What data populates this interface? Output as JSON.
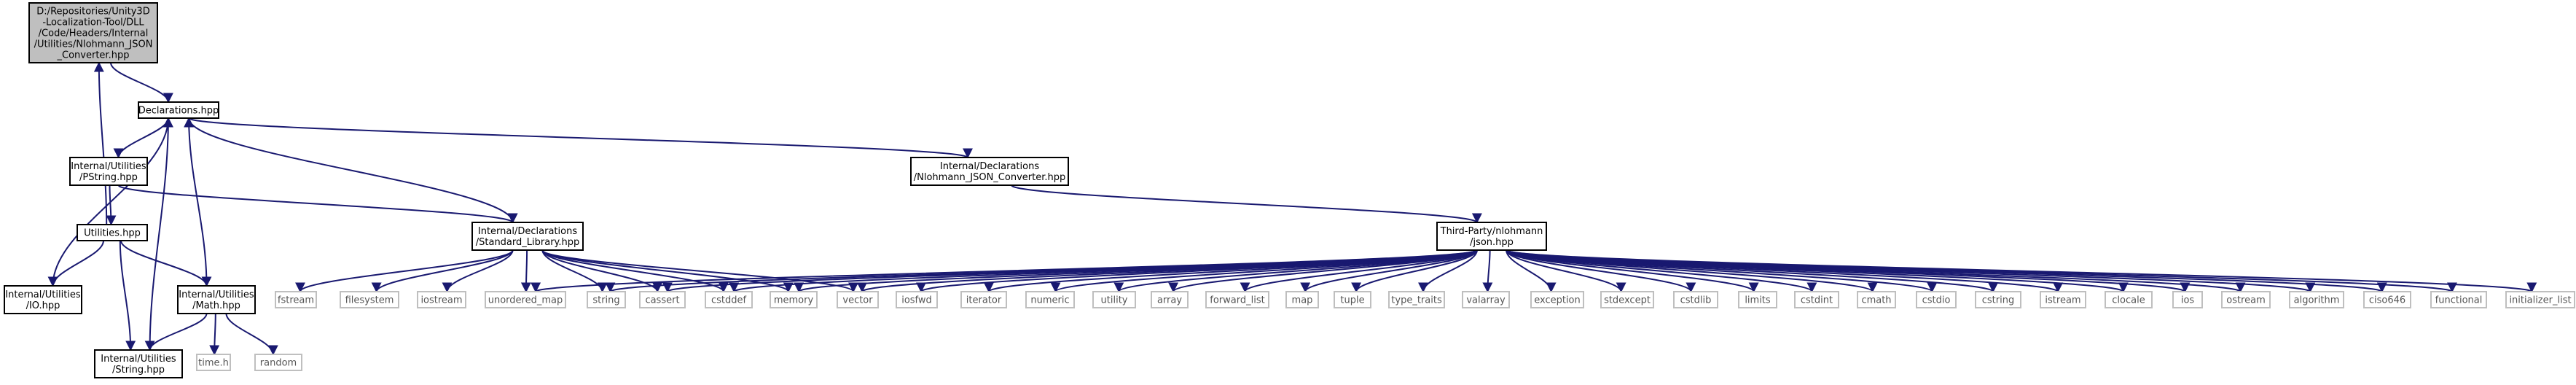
{
  "colors": {
    "edge": "#191970",
    "border": "#000000",
    "root_fill": "#bfbfbf",
    "node_fill": "#ffffff",
    "external_border": "#bfbfbf",
    "external_text": "#555555"
  },
  "nodes": [
    {
      "id": "root",
      "kind": "root",
      "lines": [
        "D:/Repositories/Unity3D",
        "-Localization-Tool/DLL",
        "/Code/Headers/Internal",
        "/Utilities/Nlohmann_JSON",
        "_Converter.hpp"
      ]
    },
    {
      "id": "decl",
      "kind": "file",
      "lines": [
        "Declarations.hpp"
      ]
    },
    {
      "id": "pstring",
      "kind": "file",
      "lines": [
        "Internal/Utilities",
        "/PString.hpp"
      ]
    },
    {
      "id": "nlohconv",
      "kind": "file",
      "lines": [
        "Internal/Declarations",
        "/Nlohmann_JSON_Converter.hpp"
      ]
    },
    {
      "id": "utilities",
      "kind": "file",
      "lines": [
        "Utilities.hpp"
      ]
    },
    {
      "id": "stdlib",
      "kind": "file",
      "lines": [
        "Internal/Declarations",
        "/Standard_Library.hpp"
      ]
    },
    {
      "id": "json",
      "kind": "file",
      "lines": [
        "Third-Party/nlohmann",
        "/json.hpp"
      ]
    },
    {
      "id": "io",
      "kind": "file",
      "lines": [
        "Internal/Utilities",
        "/IO.hpp"
      ]
    },
    {
      "id": "math",
      "kind": "file",
      "lines": [
        "Internal/Utilities",
        "/Math.hpp"
      ]
    },
    {
      "id": "string_hpp",
      "kind": "file",
      "lines": [
        "Internal/Utilities",
        "/String.hpp"
      ]
    },
    {
      "id": "time_h",
      "kind": "ext",
      "lines": [
        "time.h"
      ]
    },
    {
      "id": "random",
      "kind": "ext",
      "lines": [
        "random"
      ]
    },
    {
      "id": "fstream",
      "kind": "ext",
      "lines": [
        "fstream"
      ]
    },
    {
      "id": "filesystem",
      "kind": "ext",
      "lines": [
        "filesystem"
      ]
    },
    {
      "id": "iostream",
      "kind": "ext",
      "lines": [
        "iostream"
      ]
    },
    {
      "id": "unordered_map",
      "kind": "ext",
      "lines": [
        "unordered_map"
      ]
    },
    {
      "id": "string",
      "kind": "ext",
      "lines": [
        "string"
      ]
    },
    {
      "id": "cassert",
      "kind": "ext",
      "lines": [
        "cassert"
      ]
    },
    {
      "id": "cstddef",
      "kind": "ext",
      "lines": [
        "cstddef"
      ]
    },
    {
      "id": "memory",
      "kind": "ext",
      "lines": [
        "memory"
      ]
    },
    {
      "id": "vector",
      "kind": "ext",
      "lines": [
        "vector"
      ]
    },
    {
      "id": "iosfwd",
      "kind": "ext",
      "lines": [
        "iosfwd"
      ]
    },
    {
      "id": "iterator",
      "kind": "ext",
      "lines": [
        "iterator"
      ]
    },
    {
      "id": "numeric",
      "kind": "ext",
      "lines": [
        "numeric"
      ]
    },
    {
      "id": "utility",
      "kind": "ext",
      "lines": [
        "utility"
      ]
    },
    {
      "id": "array",
      "kind": "ext",
      "lines": [
        "array"
      ]
    },
    {
      "id": "forward_list",
      "kind": "ext",
      "lines": [
        "forward_list"
      ]
    },
    {
      "id": "map",
      "kind": "ext",
      "lines": [
        "map"
      ]
    },
    {
      "id": "tuple",
      "kind": "ext",
      "lines": [
        "tuple"
      ]
    },
    {
      "id": "type_traits",
      "kind": "ext",
      "lines": [
        "type_traits"
      ]
    },
    {
      "id": "valarray",
      "kind": "ext",
      "lines": [
        "valarray"
      ]
    },
    {
      "id": "exception",
      "kind": "ext",
      "lines": [
        "exception"
      ]
    },
    {
      "id": "stdexcept",
      "kind": "ext",
      "lines": [
        "stdexcept"
      ]
    },
    {
      "id": "cstdlib",
      "kind": "ext",
      "lines": [
        "cstdlib"
      ]
    },
    {
      "id": "limits",
      "kind": "ext",
      "lines": [
        "limits"
      ]
    },
    {
      "id": "cstdint",
      "kind": "ext",
      "lines": [
        "cstdint"
      ]
    },
    {
      "id": "cmath",
      "kind": "ext",
      "lines": [
        "cmath"
      ]
    },
    {
      "id": "cstdio",
      "kind": "ext",
      "lines": [
        "cstdio"
      ]
    },
    {
      "id": "cstring",
      "kind": "ext",
      "lines": [
        "cstring"
      ]
    },
    {
      "id": "istream",
      "kind": "ext",
      "lines": [
        "istream"
      ]
    },
    {
      "id": "clocale",
      "kind": "ext",
      "lines": [
        "clocale"
      ]
    },
    {
      "id": "ios",
      "kind": "ext",
      "lines": [
        "ios"
      ]
    },
    {
      "id": "ostream",
      "kind": "ext",
      "lines": [
        "ostream"
      ]
    },
    {
      "id": "algorithm",
      "kind": "ext",
      "lines": [
        "algorithm"
      ]
    },
    {
      "id": "ciso646",
      "kind": "ext",
      "lines": [
        "ciso646"
      ]
    },
    {
      "id": "functional",
      "kind": "ext",
      "lines": [
        "functional"
      ]
    },
    {
      "id": "initializer_list",
      "kind": "ext",
      "lines": [
        "initializer_list"
      ]
    }
  ],
  "edges": [
    [
      "root",
      "decl"
    ],
    [
      "decl",
      "pstring"
    ],
    [
      "decl",
      "stdlib"
    ],
    [
      "decl",
      "nlohconv"
    ],
    [
      "pstring",
      "utilities"
    ],
    [
      "pstring",
      "stdlib"
    ],
    [
      "nlohconv",
      "json"
    ],
    [
      "utilities",
      "root"
    ],
    [
      "utilities",
      "io"
    ],
    [
      "utilities",
      "math"
    ],
    [
      "utilities",
      "string_hpp"
    ],
    [
      "io",
      "decl"
    ],
    [
      "math",
      "decl"
    ],
    [
      "math",
      "string_hpp"
    ],
    [
      "math",
      "time_h"
    ],
    [
      "math",
      "random"
    ],
    [
      "string_hpp",
      "decl"
    ],
    [
      "stdlib",
      "fstream"
    ],
    [
      "stdlib",
      "filesystem"
    ],
    [
      "stdlib",
      "iostream"
    ],
    [
      "stdlib",
      "unordered_map"
    ],
    [
      "stdlib",
      "string"
    ],
    [
      "stdlib",
      "cassert"
    ],
    [
      "stdlib",
      "cstddef"
    ],
    [
      "stdlib",
      "memory"
    ],
    [
      "stdlib",
      "vector"
    ],
    [
      "json",
      "unordered_map"
    ],
    [
      "json",
      "string"
    ],
    [
      "json",
      "cassert"
    ],
    [
      "json",
      "cstddef"
    ],
    [
      "json",
      "memory"
    ],
    [
      "json",
      "vector"
    ],
    [
      "json",
      "iosfwd"
    ],
    [
      "json",
      "iterator"
    ],
    [
      "json",
      "numeric"
    ],
    [
      "json",
      "utility"
    ],
    [
      "json",
      "array"
    ],
    [
      "json",
      "forward_list"
    ],
    [
      "json",
      "map"
    ],
    [
      "json",
      "tuple"
    ],
    [
      "json",
      "type_traits"
    ],
    [
      "json",
      "valarray"
    ],
    [
      "json",
      "exception"
    ],
    [
      "json",
      "stdexcept"
    ],
    [
      "json",
      "cstdlib"
    ],
    [
      "json",
      "limits"
    ],
    [
      "json",
      "cstdint"
    ],
    [
      "json",
      "cmath"
    ],
    [
      "json",
      "cstdio"
    ],
    [
      "json",
      "cstring"
    ],
    [
      "json",
      "istream"
    ],
    [
      "json",
      "clocale"
    ],
    [
      "json",
      "ios"
    ],
    [
      "json",
      "ostream"
    ],
    [
      "json",
      "algorithm"
    ],
    [
      "json",
      "ciso646"
    ],
    [
      "json",
      "functional"
    ],
    [
      "json",
      "initializer_list"
    ]
  ]
}
